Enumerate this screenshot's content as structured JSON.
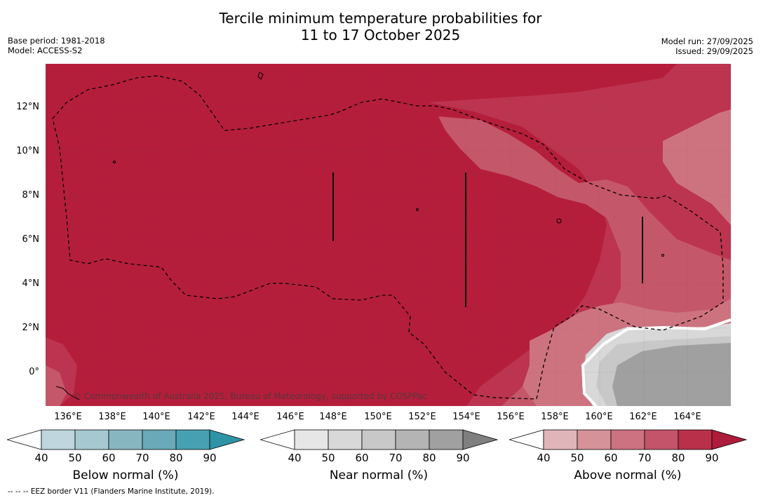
{
  "header": {
    "title_line1": "Tercile minimum temperature probabilities for",
    "title_line2": "11 to 17 October 2025",
    "base_period": "Base period: 1981-2018",
    "model": "Model: ACCESS-S2",
    "model_run": "Model run: 27/09/2025",
    "issued": "Issued: 29/09/2025"
  },
  "map": {
    "lat_labels": [
      "12°N",
      "10°N",
      "8°N",
      "6°N",
      "4°N",
      "2°N",
      "0°"
    ],
    "lon_labels": [
      "136°E",
      "138°E",
      "140°E",
      "142°E",
      "144°E",
      "146°E",
      "148°E",
      "150°E",
      "152°E",
      "154°E",
      "156°E",
      "158°E",
      "160°E",
      "162°E",
      "164°E"
    ],
    "credit": "© Commonwealth of Australia 2025, Bureau of Meteorology, supported by COSPPac",
    "colors": {
      "above_90": "#b51e3b",
      "above_80": "#bc3450",
      "above_70": "#c5576a",
      "above_60": "#cd7380",
      "near_40": "#d8d8d8",
      "near_60": "#c8c8c8",
      "near_80": "#a0a0a0"
    }
  },
  "legends": [
    {
      "name": "below",
      "label": "Below normal (%)",
      "ticks": [
        "40",
        "50",
        "60",
        "70",
        "80",
        "90"
      ],
      "colors": [
        "#bfd6de",
        "#a6c9d1",
        "#87b6c1",
        "#6aa9b8",
        "#47a0b1",
        "#2e93a6"
      ]
    },
    {
      "name": "near",
      "label": "Near normal (%)",
      "ticks": [
        "40",
        "50",
        "60",
        "70",
        "80",
        "90"
      ],
      "colors": [
        "#e6e6e6",
        "#d8d8d8",
        "#c8c8c8",
        "#b4b4b4",
        "#a0a0a0",
        "#7f7f7f"
      ]
    },
    {
      "name": "above",
      "label": "Above normal (%)",
      "ticks": [
        "40",
        "50",
        "60",
        "70",
        "80",
        "90"
      ],
      "colors": [
        "#e0b5ba",
        "#d69299",
        "#cc7280",
        "#c4546a",
        "#b9304a",
        "#ad1c3a"
      ]
    }
  ],
  "footnote": "--  --  -- EEZ border V11 (Flanders Marine Institute, 2019)."
}
